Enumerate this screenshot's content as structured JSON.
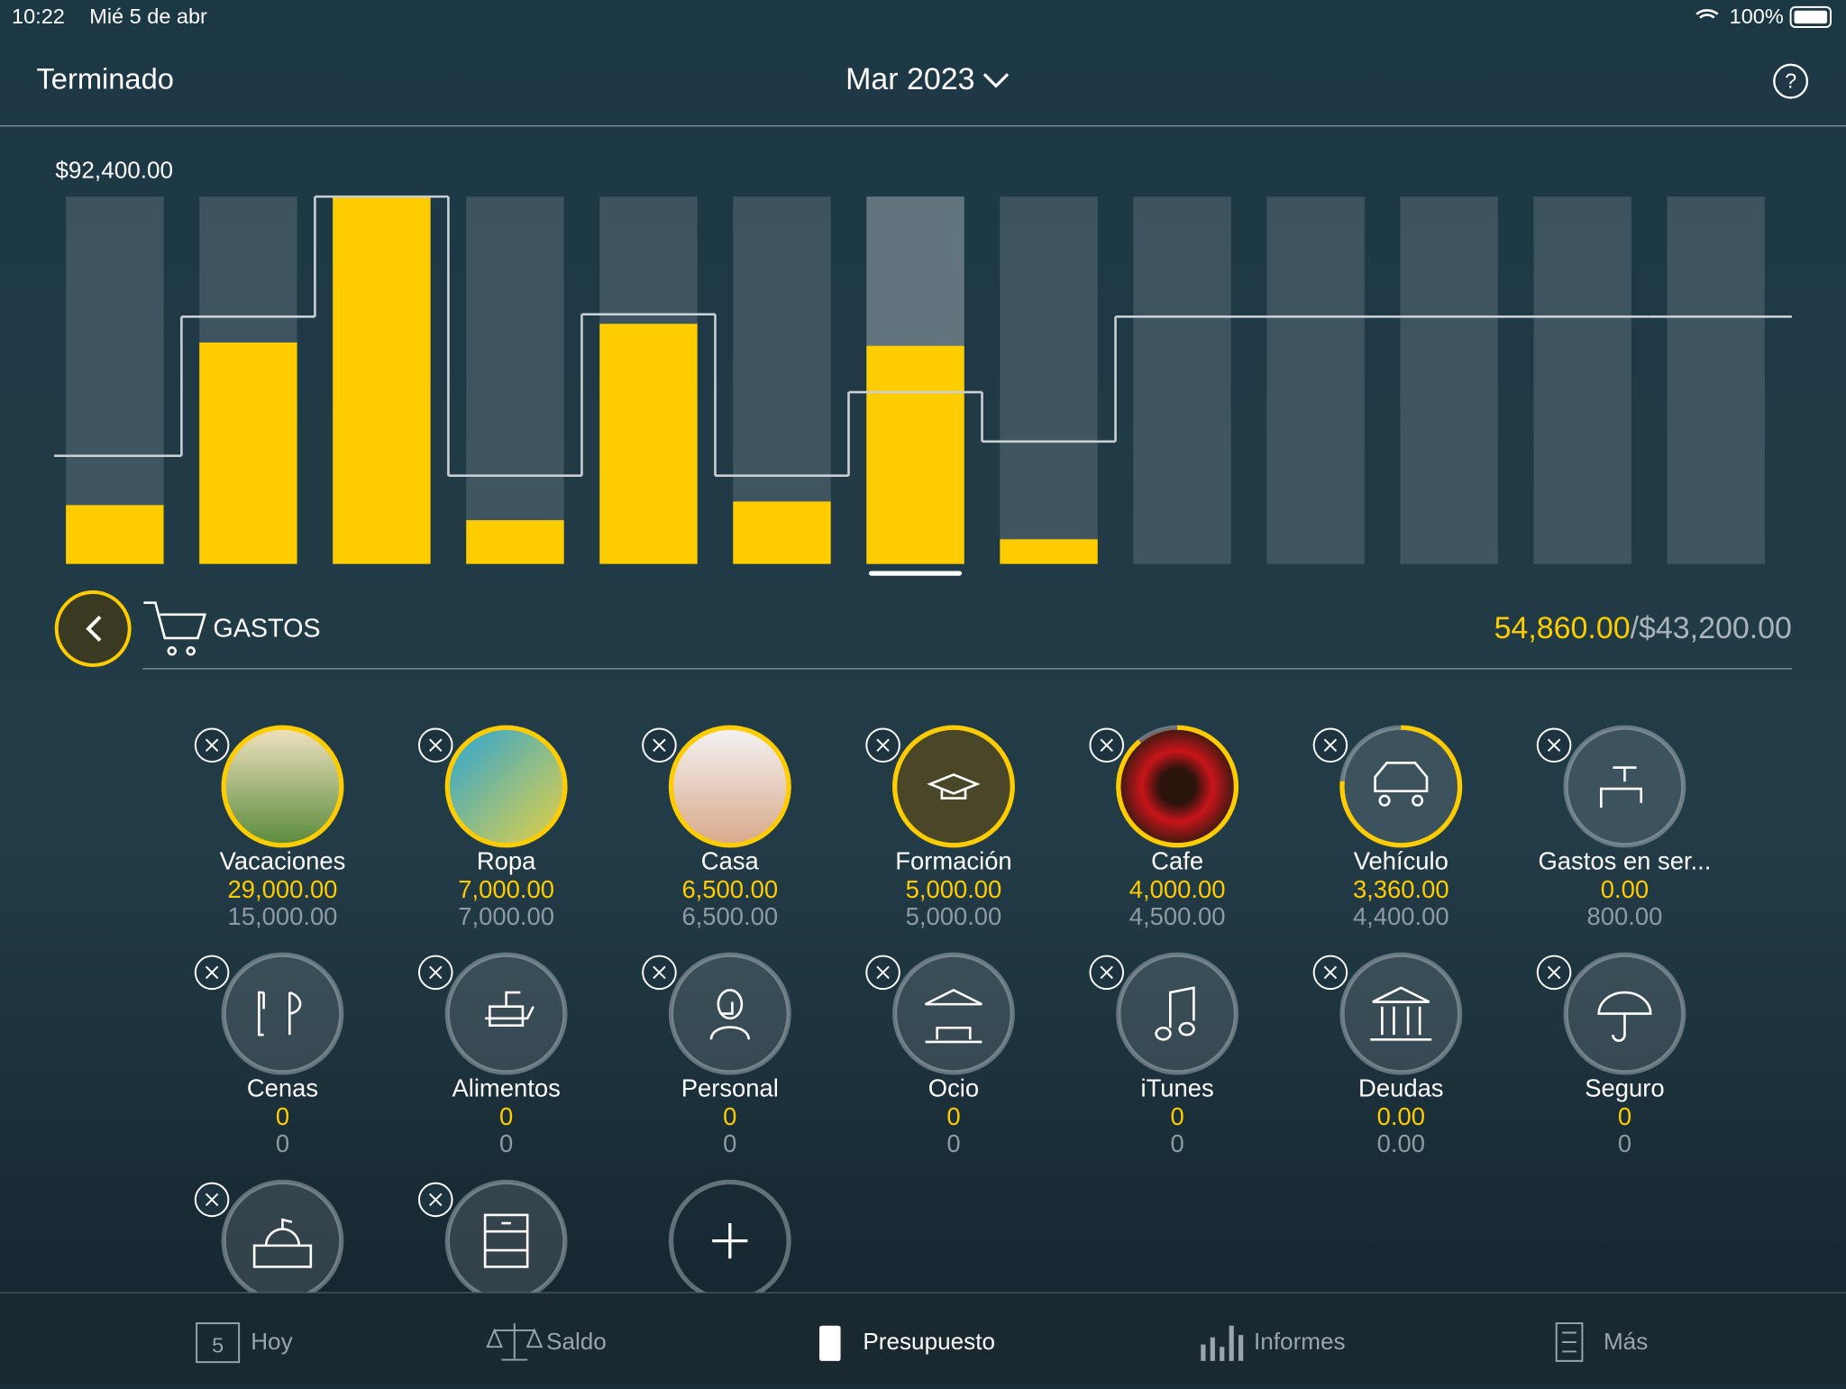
{
  "status_bar": {
    "time": "10:22",
    "date": "Mié 5 de abr",
    "battery": "100%"
  },
  "header": {
    "left": "Terminado",
    "title": "Mar 2023",
    "help": "?"
  },
  "chart_data": {
    "type": "bar",
    "categories": [
      null,
      null,
      null,
      null,
      null,
      null,
      null,
      null,
      null,
      null,
      null,
      null,
      null
    ],
    "values": [
      14800,
      55700,
      92400,
      11000,
      60400,
      15700,
      54860,
      6200,
      null,
      null,
      null,
      null,
      null
    ],
    "color": "#ffcc00",
    "budget": {
      "values": [
        27200,
        62200,
        92400,
        22200,
        62800,
        22200,
        43200,
        30800,
        62200,
        62200,
        62200,
        62200,
        62200
      ],
      "color": "#c9cfd3"
    },
    "ylim": [
      0,
      92400
    ],
    "yticks": [
      {
        "value": 92400,
        "label": "$92,400.00"
      }
    ]
  },
  "section": {
    "title": "GASTOS",
    "spent": "54,860.00",
    "separator": "/",
    "budget": "$43,200.00"
  },
  "items": [
    {
      "name": "Vacaciones",
      "spent": "29,000.00",
      "budget": "15,000.00"
    },
    {
      "name": "Ropa",
      "spent": "7,000.00",
      "budget": "7,000.00"
    },
    {
      "name": "Casa",
      "spent": "6,500.00",
      "budget": "6,500.00"
    },
    {
      "name": "Formación",
      "spent": "5,000.00",
      "budget": "5,000.00"
    },
    {
      "name": "Cafe",
      "spent": "4,000.00",
      "budget": "4,500.00"
    },
    {
      "name": "Vehículo",
      "spent": "3,360.00",
      "budget": "4,400.00"
    },
    {
      "name": "Gastos en ser...",
      "spent": "0.00",
      "budget": "800.00"
    },
    {
      "name": "Cenas",
      "spent": "0",
      "budget": "0"
    },
    {
      "name": "Alimentos",
      "spent": "0",
      "budget": "0"
    },
    {
      "name": "Personal",
      "spent": "0",
      "budget": "0"
    },
    {
      "name": "Ocio",
      "spent": "0",
      "budget": "0"
    },
    {
      "name": "iTunes",
      "spent": "0",
      "budget": "0"
    },
    {
      "name": "Deudas",
      "spent": "0.00",
      "budget": "0.00"
    },
    {
      "name": "Seguro",
      "spent": "0",
      "budget": "0"
    }
  ],
  "tabs": {
    "calendar_day": "5",
    "items": [
      "Hoy",
      "Saldo",
      "Presupuesto",
      "Informes",
      "Más"
    ]
  }
}
